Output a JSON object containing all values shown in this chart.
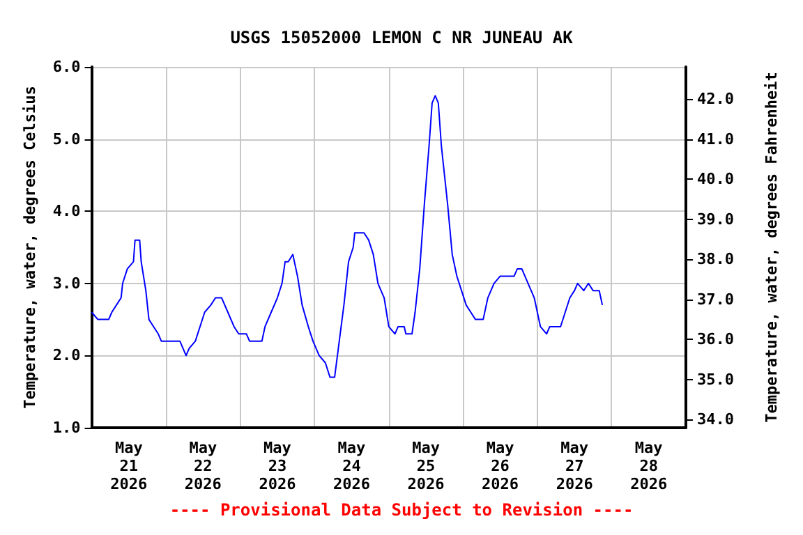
{
  "chart_data": {
    "type": "line",
    "title": "USGS 15052000 LEMON C NR JUNEAU AK",
    "ylabel": "Temperature, water, degrees Celsius",
    "y2label": "Temperature, water, degrees Fahrenheit",
    "annotations": [
      "---- Provisional Data Subject to Revision ----"
    ],
    "xlim": [
      "2026-05-21T00:00",
      "2026-05-29T00:00"
    ],
    "xticks": [
      {
        "value": "2026-05-21T00:00",
        "label": null
      },
      {
        "value": "2026-05-21T12:00",
        "label": "May\n21\n2026"
      },
      {
        "value": "2026-05-22T00:00",
        "label": null
      },
      {
        "value": "2026-05-22T12:00",
        "label": "May\n22\n2026"
      },
      {
        "value": "2026-05-23T00:00",
        "label": null
      },
      {
        "value": "2026-05-23T12:00",
        "label": "May\n23\n2026"
      },
      {
        "value": "2026-05-24T00:00",
        "label": null
      },
      {
        "value": "2026-05-24T12:00",
        "label": "May\n24\n2026"
      },
      {
        "value": "2026-05-25T00:00",
        "label": null
      },
      {
        "value": "2026-05-25T12:00",
        "label": "May\n25\n2026"
      },
      {
        "value": "2026-05-26T00:00",
        "label": null
      },
      {
        "value": "2026-05-26T12:00",
        "label": "May\n26\n2026"
      },
      {
        "value": "2026-05-27T00:00",
        "label": null
      },
      {
        "value": "2026-05-27T12:00",
        "label": "May\n27\n2026"
      },
      {
        "value": "2026-05-28T00:00",
        "label": null
      },
      {
        "value": "2026-05-28T12:00",
        "label": "May\n28\n2026"
      },
      {
        "value": "2026-05-29T00:00",
        "label": null
      }
    ],
    "ylim": [
      1,
      6
    ],
    "yticks": [
      {
        "value": 1,
        "label": "1.0"
      },
      {
        "value": 2,
        "label": "2.0"
      },
      {
        "value": 3,
        "label": "3.0"
      },
      {
        "value": 4,
        "label": "4.0"
      },
      {
        "value": 5,
        "label": "5.0"
      },
      {
        "value": 6,
        "label": "6.0"
      }
    ],
    "y2lim": [
      33.8,
      42.8
    ],
    "y2ticks": [
      {
        "value": 34,
        "label": "34.0"
      },
      {
        "value": 35,
        "label": "35.0"
      },
      {
        "value": 36,
        "label": "36.0"
      },
      {
        "value": 37,
        "label": "37.0"
      },
      {
        "value": 38,
        "label": "38.0"
      },
      {
        "value": 39,
        "label": "39.0"
      },
      {
        "value": 40,
        "label": "40.0"
      },
      {
        "value": 41,
        "label": "41.0"
      },
      {
        "value": 42,
        "label": "42.0"
      }
    ],
    "grid": true,
    "marker": "none",
    "line_style": "solid",
    "x": [
      "2026-05-21T00:00",
      "2026-05-21T02:00",
      "2026-05-21T05:30",
      "2026-05-21T06:30",
      "2026-05-21T08:00",
      "2026-05-21T09:30",
      "2026-05-21T10:00",
      "2026-05-21T11:30",
      "2026-05-21T13:30",
      "2026-05-21T14:00",
      "2026-05-21T15:30",
      "2026-05-21T16:00",
      "2026-05-21T17:30",
      "2026-05-21T18:30",
      "2026-05-21T20:00",
      "2026-05-21T21:30",
      "2026-05-21T22:30",
      "2026-05-22T04:30",
      "2026-05-22T06:30",
      "2026-05-22T07:30",
      "2026-05-22T09:30",
      "2026-05-22T11:00",
      "2026-05-22T12:30",
      "2026-05-22T14:30",
      "2026-05-22T16:00",
      "2026-05-22T18:00",
      "2026-05-22T20:00",
      "2026-05-22T22:00",
      "2026-05-22T23:30",
      "2026-05-23T02:00",
      "2026-05-23T03:00",
      "2026-05-23T07:00",
      "2026-05-23T08:00",
      "2026-05-23T10:00",
      "2026-05-23T12:00",
      "2026-05-23T13:30",
      "2026-05-23T14:30",
      "2026-05-23T15:30",
      "2026-05-23T17:00",
      "2026-05-23T18:30",
      "2026-05-23T20:00",
      "2026-05-23T22:00",
      "2026-05-23T23:30",
      "2026-05-24T01:30",
      "2026-05-24T03:30",
      "2026-05-24T05:00",
      "2026-05-24T06:30",
      "2026-05-24T08:00",
      "2026-05-24T09:30",
      "2026-05-24T11:00",
      "2026-05-24T12:30",
      "2026-05-24T13:00",
      "2026-05-24T16:00",
      "2026-05-24T17:30",
      "2026-05-24T19:00",
      "2026-05-24T20:30",
      "2026-05-24T22:30",
      "2026-05-25T00:00",
      "2026-05-25T02:00",
      "2026-05-25T03:00",
      "2026-05-25T05:00",
      "2026-05-25T05:30",
      "2026-05-25T07:30",
      "2026-05-25T08:30",
      "2026-05-25T10:00",
      "2026-05-25T11:30",
      "2026-05-25T13:00",
      "2026-05-25T14:00",
      "2026-05-25T15:00",
      "2026-05-25T16:00",
      "2026-05-25T17:00",
      "2026-05-25T19:00",
      "2026-05-25T20:30",
      "2026-05-25T22:00",
      "2026-05-25T23:30",
      "2026-05-26T01:00",
      "2026-05-26T02:30",
      "2026-05-26T04:00",
      "2026-05-26T06:30",
      "2026-05-26T08:00",
      "2026-05-26T10:00",
      "2026-05-26T12:00",
      "2026-05-26T16:30",
      "2026-05-26T17:30",
      "2026-05-26T19:00",
      "2026-05-26T21:00",
      "2026-05-26T23:00",
      "2026-05-27T01:00",
      "2026-05-27T03:00",
      "2026-05-27T04:00",
      "2026-05-27T07:30",
      "2026-05-27T09:00",
      "2026-05-27T10:30",
      "2026-05-27T12:00",
      "2026-05-27T13:00",
      "2026-05-27T15:00",
      "2026-05-27T16:30",
      "2026-05-27T18:00",
      "2026-05-27T20:00",
      "2026-05-27T20:30",
      "2026-05-27T21:00"
    ],
    "series": [
      {
        "color": "#0000ff",
        "values": [
          2.6,
          2.5,
          2.5,
          2.6,
          2.7,
          2.8,
          3.0,
          3.2,
          3.3,
          3.6,
          3.6,
          3.3,
          2.9,
          2.5,
          2.4,
          2.3,
          2.2,
          2.2,
          2.0,
          2.1,
          2.2,
          2.4,
          2.6,
          2.7,
          2.8,
          2.8,
          2.6,
          2.4,
          2.3,
          2.3,
          2.2,
          2.2,
          2.4,
          2.6,
          2.8,
          3.0,
          3.3,
          3.3,
          3.4,
          3.1,
          2.7,
          2.4,
          2.2,
          2.0,
          1.9,
          1.7,
          1.7,
          2.2,
          2.7,
          3.3,
          3.5,
          3.7,
          3.7,
          3.6,
          3.4,
          3.0,
          2.8,
          2.4,
          2.3,
          2.4,
          2.4,
          2.3,
          2.3,
          2.6,
          3.2,
          4.1,
          4.9,
          5.5,
          5.6,
          5.5,
          4.9,
          4.1,
          3.4,
          3.1,
          2.9,
          2.7,
          2.6,
          2.5,
          2.5,
          2.8,
          3.0,
          3.1,
          3.1,
          3.2,
          3.2,
          3.0,
          2.8,
          2.4,
          2.3,
          2.4,
          2.4,
          2.6,
          2.8,
          2.9,
          3.0,
          2.9,
          3.0,
          2.9,
          2.9,
          2.8,
          2.7
        ]
      }
    ]
  }
}
